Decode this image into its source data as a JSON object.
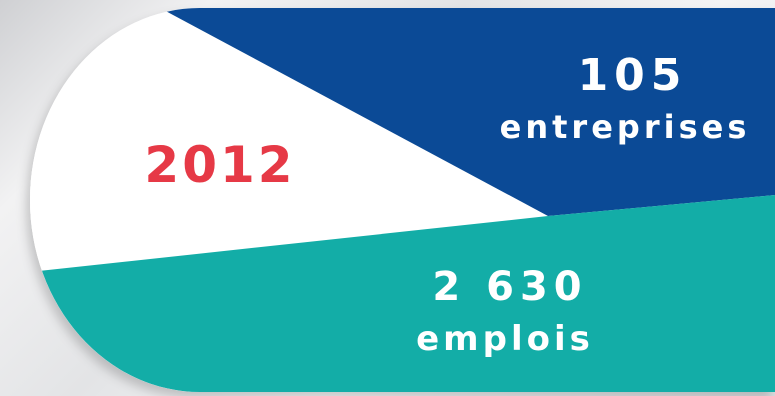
{
  "year": "2012",
  "companies": {
    "value": "105",
    "label": "entreprises"
  },
  "jobs": {
    "value": "2 630",
    "label": "emplois"
  },
  "colors": {
    "year_text": "#e63946",
    "blue": "#0b4a96",
    "teal": "#13ada7",
    "white": "#ffffff"
  }
}
